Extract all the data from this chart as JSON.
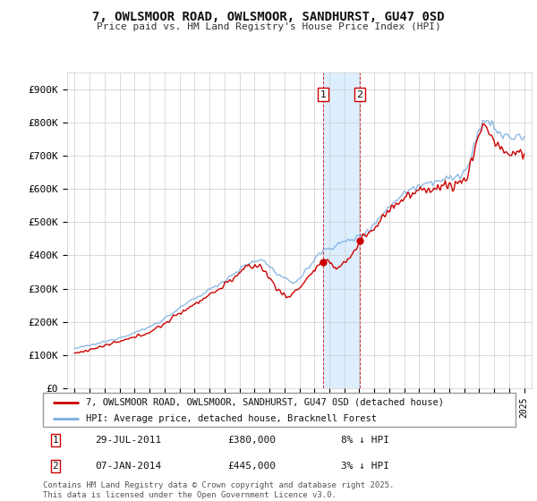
{
  "title": "7, OWLSMOOR ROAD, OWLSMOOR, SANDHURST, GU47 0SD",
  "subtitle": "Price paid vs. HM Land Registry's House Price Index (HPI)",
  "ylim": [
    0,
    950000
  ],
  "yticks": [
    0,
    100000,
    200000,
    300000,
    400000,
    500000,
    600000,
    700000,
    800000,
    900000
  ],
  "ytick_labels": [
    "£0",
    "£100K",
    "£200K",
    "£300K",
    "£400K",
    "£500K",
    "£600K",
    "£700K",
    "£800K",
    "£900K"
  ],
  "legend_line1": "7, OWLSMOOR ROAD, OWLSMOOR, SANDHURST, GU47 0SD (detached house)",
  "legend_line2": "HPI: Average price, detached house, Bracknell Forest",
  "transaction1_date": "29-JUL-2011",
  "transaction1_price": "£380,000",
  "transaction1_hpi": "8% ↓ HPI",
  "transaction2_date": "07-JAN-2014",
  "transaction2_price": "£445,000",
  "transaction2_hpi": "3% ↓ HPI",
  "footer": "Contains HM Land Registry data © Crown copyright and database right 2025.\nThis data is licensed under the Open Government Licence v3.0.",
  "red_color": "#cc0000",
  "blue_color": "#7aade0",
  "highlight_color": "#ddeeff",
  "background_color": "#ffffff",
  "grid_color": "#cccccc",
  "transaction1_x": 2011.58,
  "transaction2_x": 2014.03,
  "transaction1_y": 380000,
  "transaction2_y": 445000,
  "xlim": [
    1994.5,
    2025.5
  ],
  "xticks": [
    1995,
    1996,
    1997,
    1998,
    1999,
    2000,
    2001,
    2002,
    2003,
    2004,
    2005,
    2006,
    2007,
    2008,
    2009,
    2010,
    2011,
    2012,
    2013,
    2014,
    2015,
    2016,
    2017,
    2018,
    2019,
    2020,
    2021,
    2022,
    2023,
    2024,
    2025
  ]
}
